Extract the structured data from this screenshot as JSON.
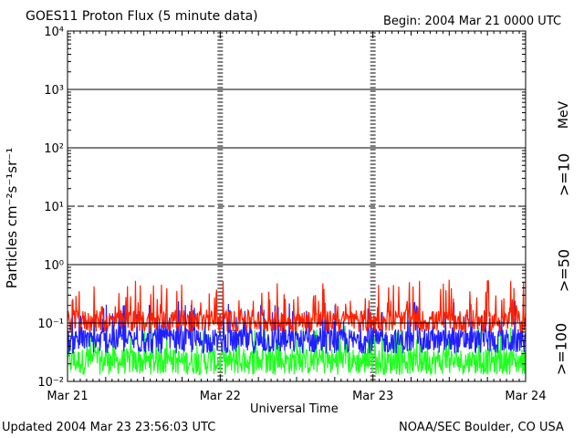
{
  "header": {
    "title": "GOES11 Proton Flux (5 minute data)",
    "begin": "Begin: 2004 Mar 21 0000 UTC"
  },
  "footer": {
    "updated": "Updated 2004 Mar 23 23:56:03 UTC",
    "credit": "NOAA/SEC Boulder, CO USA"
  },
  "colors": {
    "ge10": "#ff2000",
    "ge50": "#2020ff",
    "ge100": "#20ff20",
    "background": "#ffffff",
    "axis": "#000000"
  },
  "chart_data": {
    "type": "line",
    "title": "GOES11 Proton Flux (5 minute data)",
    "xlabel": "Universal Time",
    "ylabel": "Particles cm⁻²s⁻¹sr⁻¹",
    "yscale": "log",
    "ylim": [
      0.01,
      10000
    ],
    "xlim": [
      "2004-03-21T00:00",
      "2004-03-24T00:00"
    ],
    "x_ticks": [
      "Mar 21",
      "Mar 22",
      "Mar 23",
      "Mar 24"
    ],
    "y_ticks": [
      "10⁻²",
      "10⁻¹",
      "10⁰",
      "10¹",
      "10²",
      "10³",
      "10⁴"
    ],
    "grid": "horizontal decade lines",
    "threshold_lines": [
      {
        "value": 10,
        "style": "dashed"
      },
      {
        "value": 0.1,
        "style": "solid"
      }
    ],
    "units_label": "MeV",
    "series": [
      {
        "name": ">=10",
        "color": "#ff2000",
        "typical": 0.12,
        "min": 0.07,
        "max": 0.55
      },
      {
        "name": ">=50",
        "color": "#2020ff",
        "typical": 0.055,
        "min": 0.03,
        "max": 0.25
      },
      {
        "name": ">=100",
        "color": "#20ff20",
        "typical": 0.025,
        "min": 0.013,
        "max": 0.1
      }
    ]
  }
}
